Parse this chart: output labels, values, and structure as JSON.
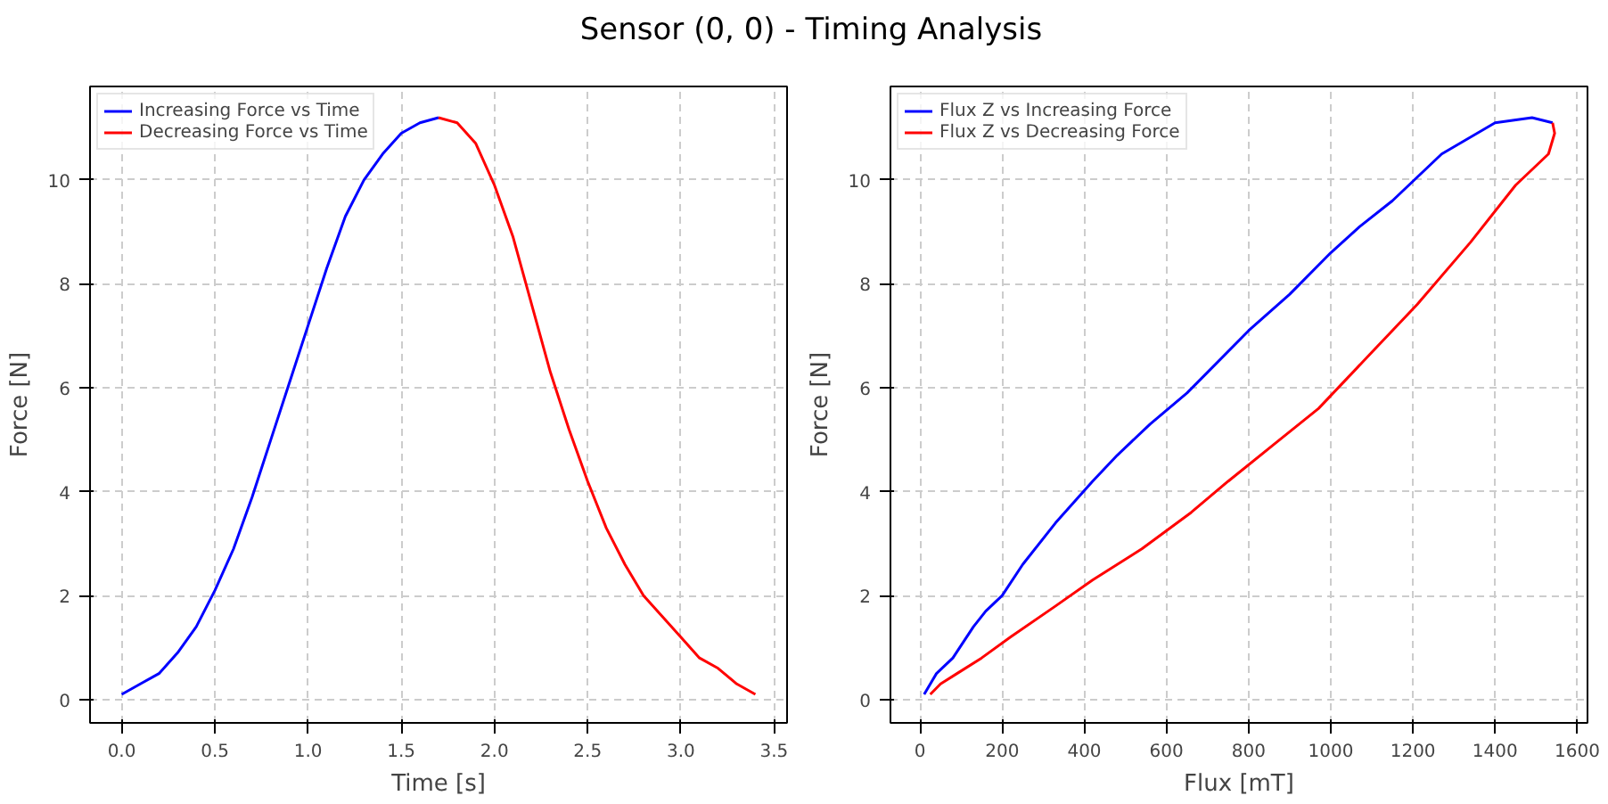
{
  "chart_data": [
    {
      "type": "line",
      "title": "Sensor (0, 0) - Timing Analysis",
      "xlabel": "Time [s]",
      "ylabel": "Force [N]",
      "xlim": [
        -0.17,
        3.57
      ],
      "ylim": [
        -0.45,
        11.8
      ],
      "xticks": [
        {
          "value": 0,
          "label": "0.0"
        },
        {
          "value": 0.5,
          "label": "0.5"
        },
        {
          "value": 1,
          "label": "1.0"
        },
        {
          "value": 1.5,
          "label": "1.5"
        },
        {
          "value": 2,
          "label": "2.0"
        },
        {
          "value": 2.5,
          "label": "2.5"
        },
        {
          "value": 3,
          "label": "3.0"
        },
        {
          "value": 3.5,
          "label": "3.5"
        }
      ],
      "yticks": [
        0,
        2,
        4,
        6,
        8,
        10
      ],
      "grid": true,
      "legend": "top left",
      "line_style": "solid",
      "series": [
        {
          "name": "Increasing Force vs Time",
          "color": "#0000ff",
          "x": [
            0,
            0.1,
            0.2,
            0.3,
            0.4,
            0.5,
            0.6,
            0.7,
            0.8,
            0.9,
            1.0,
            1.1,
            1.2,
            1.3,
            1.4,
            1.5,
            1.6,
            1.7
          ],
          "values": [
            0.1,
            0.3,
            0.5,
            0.9,
            1.4,
            2.1,
            2.9,
            3.9,
            5.0,
            6.1,
            7.2,
            8.3,
            9.3,
            10.0,
            10.5,
            10.9,
            11.1,
            11.2
          ]
        },
        {
          "name": "Decreasing Force vs Time",
          "color": "#ff0000",
          "x": [
            1.7,
            1.8,
            1.9,
            2.0,
            2.1,
            2.2,
            2.3,
            2.4,
            2.5,
            2.6,
            2.7,
            2.8,
            2.9,
            3.0,
            3.1,
            3.2,
            3.3,
            3.4
          ],
          "values": [
            11.2,
            11.1,
            10.7,
            9.9,
            8.9,
            7.6,
            6.3,
            5.2,
            4.2,
            3.3,
            2.6,
            2.0,
            1.6,
            1.2,
            0.8,
            0.6,
            0.3,
            0.1
          ]
        }
      ]
    },
    {
      "type": "line",
      "xlabel": "Flux [mT]",
      "ylabel": "Force [N]",
      "xlim": [
        -72,
        1625
      ],
      "ylim": [
        -0.45,
        11.8
      ],
      "xticks": [
        0,
        200,
        400,
        600,
        800,
        1000,
        1200,
        1400,
        1600
      ],
      "yticks": [
        0,
        2,
        4,
        6,
        8,
        10
      ],
      "grid": true,
      "legend": "top left",
      "line_style": "solid",
      "series": [
        {
          "name": "Flux Z vs Increasing Force",
          "color": "#0000ff",
          "x": [
            10,
            40,
            80,
            130,
            160,
            200,
            250,
            330,
            420,
            480,
            560,
            650,
            700,
            800,
            900,
            1000,
            1070,
            1150,
            1270,
            1400,
            1490,
            1540
          ],
          "values": [
            0.1,
            0.5,
            0.8,
            1.4,
            1.7,
            2.0,
            2.6,
            3.4,
            4.2,
            4.7,
            5.3,
            5.9,
            6.3,
            7.1,
            7.8,
            8.6,
            9.1,
            9.6,
            10.5,
            11.1,
            11.2,
            11.1
          ]
        },
        {
          "name": "Flux Z vs Decreasing Force",
          "color": "#ff0000",
          "x": [
            1540,
            1545,
            1530,
            1450,
            1340,
            1210,
            1090,
            970,
            860,
            750,
            660,
            540,
            420,
            330,
            220,
            150,
            90,
            50,
            25
          ],
          "values": [
            11.1,
            10.9,
            10.5,
            9.9,
            8.8,
            7.6,
            6.6,
            5.6,
            4.9,
            4.2,
            3.6,
            2.9,
            2.3,
            1.8,
            1.2,
            0.8,
            0.5,
            0.3,
            0.1
          ]
        }
      ]
    }
  ]
}
